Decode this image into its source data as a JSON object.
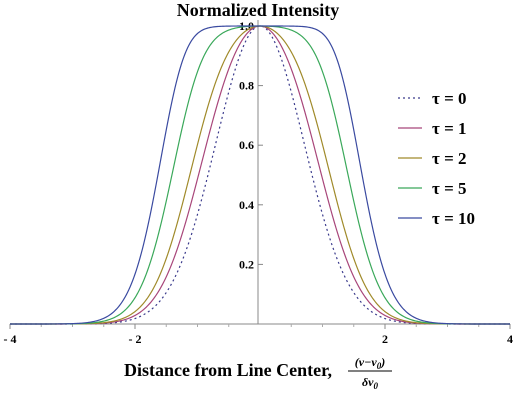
{
  "chart_data": {
    "type": "line",
    "title": "Normalized Intensity",
    "xlabel_text": "Distance from Line Center,",
    "xlabel_numerator": "(ν−ν",
    "xlabel_numerator_sub": "0",
    "xlabel_numerator_close": ")",
    "xlabel_denominator": "δν",
    "xlabel_denominator_sub": "0",
    "xlim": [
      -4,
      4
    ],
    "ylim": [
      0,
      1
    ],
    "x_ticks": [
      {
        "value": -4,
        "label": "- 4"
      },
      {
        "value": -2,
        "label": "- 2"
      },
      {
        "value": 2,
        "label": "2"
      },
      {
        "value": 4,
        "label": "4"
      }
    ],
    "y_ticks": [
      {
        "value": 0.2,
        "label": "0.2"
      },
      {
        "value": 0.4,
        "label": "0.4"
      },
      {
        "value": 0.6,
        "label": "0.6"
      },
      {
        "value": 0.8,
        "label": "0.8"
      },
      {
        "value": 1.0,
        "label": "1.0"
      }
    ],
    "legend_position": "right",
    "series": [
      {
        "name": "τ = 0",
        "tau": 0,
        "color": "#3a3a8c",
        "dashed": true
      },
      {
        "name": "τ = 1",
        "tau": 1,
        "color": "#a8467a",
        "dashed": false
      },
      {
        "name": "τ = 2",
        "tau": 2,
        "color": "#a08a2a",
        "dashed": false
      },
      {
        "name": "τ = 5",
        "tau": 5,
        "color": "#3aa85a",
        "dashed": false
      },
      {
        "name": "τ = 10",
        "tau": 10,
        "color": "#3a4aa0",
        "dashed": false
      }
    ]
  }
}
